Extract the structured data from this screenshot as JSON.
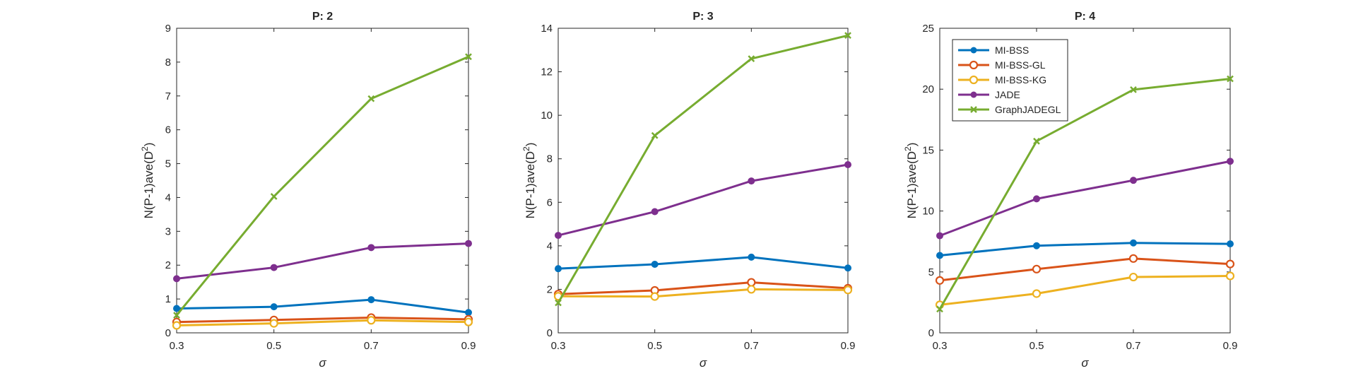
{
  "chart_data": [
    {
      "type": "line",
      "title": "P: 2",
      "xlabel": "σ",
      "ylabel": "N(P-1)ave(D²)",
      "x": [
        0.3,
        0.5,
        0.7,
        0.9
      ],
      "xticks": [
        "0.3",
        "0.5",
        "0.7",
        "0.9"
      ],
      "xlim": [
        0.3,
        0.9
      ],
      "ylim": [
        0,
        9
      ],
      "yticks": [
        0,
        1,
        2,
        3,
        4,
        5,
        6,
        7,
        8,
        9
      ],
      "grid": false,
      "legend": null,
      "series": [
        {
          "name": "MI-BSS",
          "color": "#0072BD",
          "marker": "dot",
          "values": [
            0.72,
            0.77,
            0.98,
            0.6
          ]
        },
        {
          "name": "MI-BSS-GL",
          "color": "#D95319",
          "marker": "circle",
          "values": [
            0.32,
            0.38,
            0.45,
            0.4
          ]
        },
        {
          "name": "MI-BSS-KG",
          "color": "#EDB120",
          "marker": "circle",
          "values": [
            0.22,
            0.28,
            0.37,
            0.32
          ]
        },
        {
          "name": "JADE",
          "color": "#7E2F8E",
          "marker": "dot",
          "values": [
            1.6,
            1.93,
            2.52,
            2.64
          ]
        },
        {
          "name": "GraphJADEGL",
          "color": "#77AC30",
          "marker": "x",
          "values": [
            0.52,
            4.03,
            6.92,
            8.16
          ]
        }
      ]
    },
    {
      "type": "line",
      "title": "P: 3",
      "xlabel": "σ",
      "ylabel": "N(P-1)ave(D²)",
      "x": [
        0.3,
        0.5,
        0.7,
        0.9
      ],
      "xticks": [
        "0.3",
        "0.5",
        "0.7",
        "0.9"
      ],
      "xlim": [
        0.3,
        0.9
      ],
      "ylim": [
        0,
        14
      ],
      "yticks": [
        0,
        2,
        4,
        6,
        8,
        10,
        12,
        14
      ],
      "grid": false,
      "legend": null,
      "series": [
        {
          "name": "MI-BSS",
          "color": "#0072BD",
          "marker": "dot",
          "values": [
            2.95,
            3.15,
            3.48,
            2.98
          ]
        },
        {
          "name": "MI-BSS-GL",
          "color": "#D95319",
          "marker": "circle",
          "values": [
            1.78,
            1.95,
            2.32,
            2.05
          ]
        },
        {
          "name": "MI-BSS-KG",
          "color": "#EDB120",
          "marker": "circle",
          "values": [
            1.68,
            1.67,
            2.0,
            1.97
          ]
        },
        {
          "name": "JADE",
          "color": "#7E2F8E",
          "marker": "dot",
          "values": [
            4.48,
            5.57,
            6.98,
            7.73
          ]
        },
        {
          "name": "GraphJADEGL",
          "color": "#77AC30",
          "marker": "x",
          "values": [
            1.38,
            9.07,
            12.6,
            13.67
          ]
        }
      ]
    },
    {
      "type": "line",
      "title": "P: 4",
      "xlabel": "σ",
      "ylabel": "N(P-1)ave(D²)",
      "x": [
        0.3,
        0.5,
        0.7,
        0.9
      ],
      "xticks": [
        "0.3",
        "0.5",
        "0.7",
        "0.9"
      ],
      "xlim": [
        0.3,
        0.9
      ],
      "ylim": [
        0,
        25
      ],
      "yticks": [
        0,
        5,
        10,
        15,
        20,
        25
      ],
      "grid": false,
      "legend": "top-left",
      "series": [
        {
          "name": "MI-BSS",
          "color": "#0072BD",
          "marker": "dot",
          "values": [
            6.35,
            7.15,
            7.38,
            7.3
          ]
        },
        {
          "name": "MI-BSS-GL",
          "color": "#D95319",
          "marker": "circle",
          "values": [
            4.3,
            5.23,
            6.1,
            5.65
          ]
        },
        {
          "name": "MI-BSS-KG",
          "color": "#EDB120",
          "marker": "circle",
          "values": [
            2.3,
            3.22,
            4.58,
            4.67
          ]
        },
        {
          "name": "JADE",
          "color": "#7E2F8E",
          "marker": "dot",
          "values": [
            7.97,
            11.0,
            12.52,
            14.08
          ]
        },
        {
          "name": "GraphJADEGL",
          "color": "#77AC30",
          "marker": "x",
          "values": [
            1.95,
            15.73,
            19.96,
            20.85
          ]
        }
      ]
    }
  ]
}
